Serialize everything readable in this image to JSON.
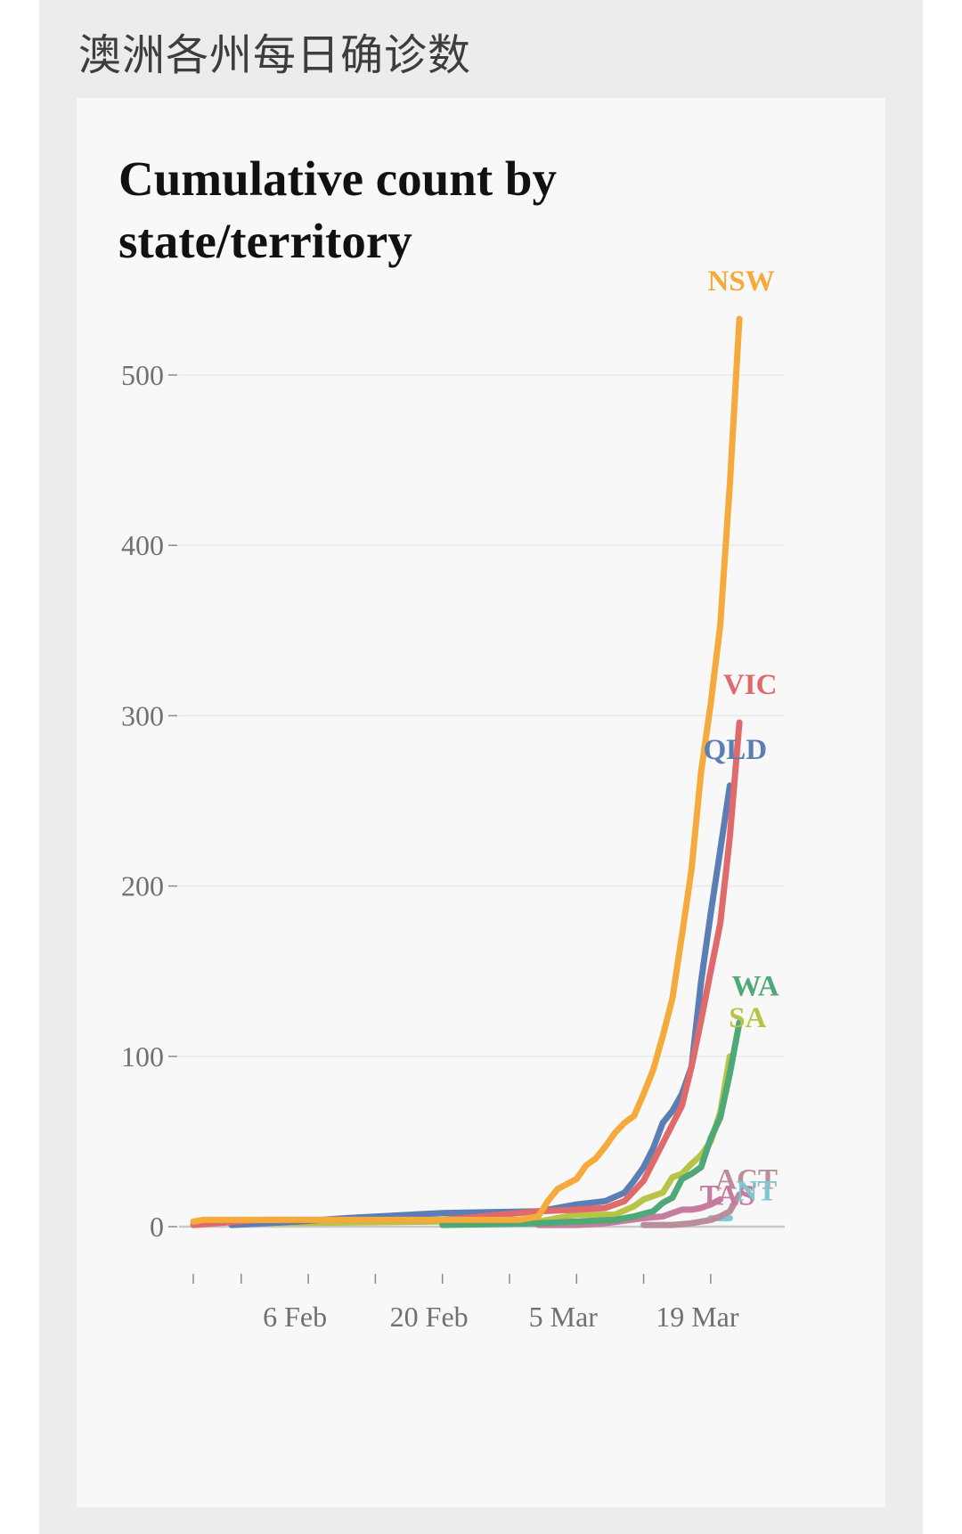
{
  "page": {
    "header_title": "澳洲各州每日确诊数"
  },
  "chart_data": {
    "type": "line",
    "title": "Cumulative count by state/territory",
    "xlabel": "",
    "ylabel": "",
    "x_start_date": "2020-01-25",
    "x_range_dates": [
      "2020-01-23",
      "2020-03-25"
    ],
    "ylim": [
      0,
      560
    ],
    "yticks": [
      0,
      100,
      200,
      300,
      400,
      500
    ],
    "xticks": [
      {
        "date": "2020-01-25",
        "label": ""
      },
      {
        "date": "2020-01-30",
        "label": ""
      },
      {
        "date": "2020-02-06",
        "label": "6 Feb"
      },
      {
        "date": "2020-02-13",
        "label": ""
      },
      {
        "date": "2020-02-20",
        "label": "20 Feb"
      },
      {
        "date": "2020-02-27",
        "label": ""
      },
      {
        "date": "2020-03-05",
        "label": "5 Mar"
      },
      {
        "date": "2020-03-12",
        "label": ""
      },
      {
        "date": "2020-03-19",
        "label": "19 Mar"
      }
    ],
    "grid": true,
    "legend": "direct labels at line ends",
    "series": [
      {
        "name": "NSW",
        "color": "#f5aa3c",
        "points": [
          [
            "2020-01-25",
            3
          ],
          [
            "2020-01-26",
            4
          ],
          [
            "2020-02-01",
            4
          ],
          [
            "2020-02-10",
            4
          ],
          [
            "2020-02-20",
            4
          ],
          [
            "2020-02-28",
            4
          ],
          [
            "2020-03-01",
            6
          ],
          [
            "2020-03-02",
            15
          ],
          [
            "2020-03-03",
            22
          ],
          [
            "2020-03-04",
            25
          ],
          [
            "2020-03-05",
            28
          ],
          [
            "2020-03-06",
            36
          ],
          [
            "2020-03-07",
            40
          ],
          [
            "2020-03-08",
            47
          ],
          [
            "2020-03-09",
            55
          ],
          [
            "2020-03-10",
            61
          ],
          [
            "2020-03-11",
            65
          ],
          [
            "2020-03-12",
            78
          ],
          [
            "2020-03-13",
            92
          ],
          [
            "2020-03-14",
            112
          ],
          [
            "2020-03-15",
            134
          ],
          [
            "2020-03-16",
            171
          ],
          [
            "2020-03-17",
            210
          ],
          [
            "2020-03-18",
            267
          ],
          [
            "2020-03-19",
            307
          ],
          [
            "2020-03-20",
            353
          ],
          [
            "2020-03-21",
            436
          ],
          [
            "2020-03-22",
            533
          ]
        ]
      },
      {
        "name": "VIC",
        "color": "#e06a6a",
        "points": [
          [
            "2020-01-25",
            1
          ],
          [
            "2020-02-01",
            4
          ],
          [
            "2020-02-20",
            4
          ],
          [
            "2020-03-01",
            9
          ],
          [
            "2020-03-05",
            10
          ],
          [
            "2020-03-08",
            11
          ],
          [
            "2020-03-10",
            15
          ],
          [
            "2020-03-12",
            27
          ],
          [
            "2020-03-14",
            49
          ],
          [
            "2020-03-16",
            71
          ],
          [
            "2020-03-17",
            94
          ],
          [
            "2020-03-18",
            121
          ],
          [
            "2020-03-19",
            150
          ],
          [
            "2020-03-20",
            178
          ],
          [
            "2020-03-21",
            229
          ],
          [
            "2020-03-22",
            296
          ]
        ]
      },
      {
        "name": "QLD",
        "color": "#5b7fb5",
        "points": [
          [
            "2020-01-29",
            1
          ],
          [
            "2020-02-05",
            3
          ],
          [
            "2020-02-10",
            5
          ],
          [
            "2020-02-20",
            8
          ],
          [
            "2020-03-01",
            9
          ],
          [
            "2020-03-03",
            11
          ],
          [
            "2020-03-05",
            13
          ],
          [
            "2020-03-08",
            15
          ],
          [
            "2020-03-10",
            20
          ],
          [
            "2020-03-11",
            27
          ],
          [
            "2020-03-12",
            35
          ],
          [
            "2020-03-13",
            46
          ],
          [
            "2020-03-14",
            61
          ],
          [
            "2020-03-15",
            68
          ],
          [
            "2020-03-16",
            78
          ],
          [
            "2020-03-17",
            94
          ],
          [
            "2020-03-18",
            144
          ],
          [
            "2020-03-19",
            184
          ],
          [
            "2020-03-20",
            221
          ],
          [
            "2020-03-21",
            259
          ]
        ]
      },
      {
        "name": "WA",
        "color": "#4fa878",
        "points": [
          [
            "2020-02-20",
            1
          ],
          [
            "2020-03-01",
            2
          ],
          [
            "2020-03-05",
            3
          ],
          [
            "2020-03-09",
            4
          ],
          [
            "2020-03-11",
            6
          ],
          [
            "2020-03-13",
            9
          ],
          [
            "2020-03-14",
            14
          ],
          [
            "2020-03-15",
            17
          ],
          [
            "2020-03-16",
            28
          ],
          [
            "2020-03-17",
            31
          ],
          [
            "2020-03-18",
            35
          ],
          [
            "2020-03-19",
            52
          ],
          [
            "2020-03-20",
            64
          ],
          [
            "2020-03-21",
            90
          ],
          [
            "2020-03-22",
            120
          ]
        ]
      },
      {
        "name": "SA",
        "color": "#b7c446",
        "points": [
          [
            "2020-02-01",
            2
          ],
          [
            "2020-02-20",
            3
          ],
          [
            "2020-03-01",
            3
          ],
          [
            "2020-03-03",
            5
          ],
          [
            "2020-03-05",
            7
          ],
          [
            "2020-03-07",
            7
          ],
          [
            "2020-03-09",
            7
          ],
          [
            "2020-03-11",
            12
          ],
          [
            "2020-03-12",
            16
          ],
          [
            "2020-03-13",
            18
          ],
          [
            "2020-03-14",
            20
          ],
          [
            "2020-03-15",
            29
          ],
          [
            "2020-03-16",
            31
          ],
          [
            "2020-03-17",
            37
          ],
          [
            "2020-03-18",
            42
          ],
          [
            "2020-03-19",
            50
          ],
          [
            "2020-03-20",
            67
          ],
          [
            "2020-03-21",
            100
          ]
        ]
      },
      {
        "name": "ACT",
        "color": "#b98e9a",
        "points": [
          [
            "2020-03-12",
            1
          ],
          [
            "2020-03-15",
            1
          ],
          [
            "2020-03-17",
            2
          ],
          [
            "2020-03-18",
            3
          ],
          [
            "2020-03-19",
            4
          ],
          [
            "2020-03-20",
            6
          ],
          [
            "2020-03-21",
            9
          ],
          [
            "2020-03-22",
            19
          ]
        ]
      },
      {
        "name": "TAS",
        "color": "#c77b9e",
        "points": [
          [
            "2020-03-01",
            1
          ],
          [
            "2020-03-05",
            1
          ],
          [
            "2020-03-08",
            2
          ],
          [
            "2020-03-12",
            5
          ],
          [
            "2020-03-14",
            6
          ],
          [
            "2020-03-16",
            10
          ],
          [
            "2020-03-17",
            10
          ],
          [
            "2020-03-18",
            11
          ],
          [
            "2020-03-19",
            13
          ],
          [
            "2020-03-20",
            16
          ]
        ]
      },
      {
        "name": "NT",
        "color": "#7ec6d3",
        "points": [
          [
            "2020-03-19",
            5
          ],
          [
            "2020-03-20",
            5
          ],
          [
            "2020-03-21",
            5
          ]
        ]
      }
    ]
  }
}
